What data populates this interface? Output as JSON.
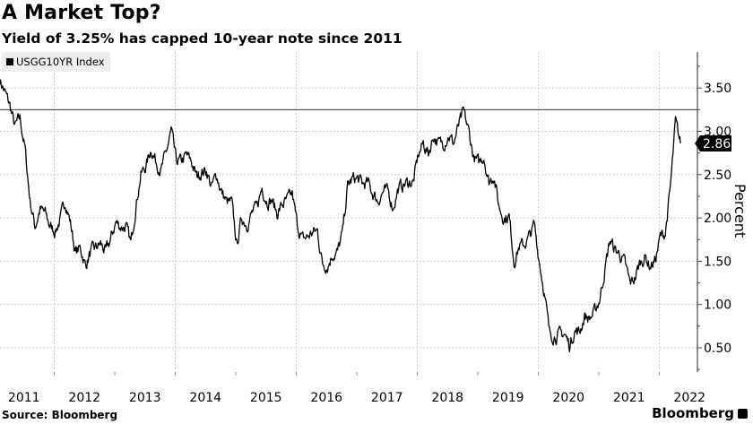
{
  "header": {
    "title": "A Market Top?",
    "subtitle": "Yield of 3.25% has capped 10-year note since 2011"
  },
  "footer": {
    "source": "Source: Bloomberg",
    "brand": "Bloomberg"
  },
  "chart_data": {
    "type": "line",
    "title": "A Market Top?",
    "subtitle": "Yield of 3.25% has capped 10-year note since 2011",
    "xlabel": "",
    "ylabel": "Percent",
    "legend": {
      "entries": [
        "USGG10YR Index"
      ],
      "placement": "top-left"
    },
    "x_tick_labels": [
      "2011",
      "2012",
      "2013",
      "2014",
      "2015",
      "2016",
      "2017",
      "2018",
      "2019",
      "2020",
      "2021",
      "2022"
    ],
    "y_tick_labels": [
      "0.50",
      "1.00",
      "1.50",
      "2.00",
      "2.50",
      "3.00",
      "3.50"
    ],
    "y_ticks": [
      0.5,
      1.0,
      1.5,
      2.0,
      2.5,
      3.0,
      3.5
    ],
    "ylim": [
      0.25,
      3.9
    ],
    "xlim": [
      2011.0,
      2022.5
    ],
    "grid": true,
    "reference_line": {
      "value": 3.25
    },
    "last_value_label": "2.86",
    "last_value": 2.86,
    "line_color": "#000000",
    "series": [
      {
        "name": "USGG10YR Index",
        "x_start": 2011.1,
        "step_years": 0.08333,
        "values": [
          3.6,
          3.45,
          3.3,
          3.05,
          3.15,
          2.8,
          2.2,
          1.9,
          2.1,
          2.05,
          1.9,
          1.85,
          1.98,
          2.2,
          1.95,
          1.6,
          1.65,
          1.45,
          1.6,
          1.65,
          1.7,
          1.6,
          1.75,
          1.95,
          1.9,
          1.9,
          1.7,
          2.15,
          2.5,
          2.6,
          2.8,
          2.65,
          2.55,
          2.75,
          3.0,
          2.65,
          2.65,
          2.72,
          2.65,
          2.48,
          2.53,
          2.55,
          2.35,
          2.5,
          2.3,
          2.18,
          2.17,
          1.68,
          2.0,
          1.93,
          2.05,
          2.12,
          2.35,
          2.2,
          2.2,
          2.05,
          2.15,
          2.2,
          2.27,
          1.92,
          1.75,
          1.78,
          1.83,
          1.85,
          1.47,
          1.45,
          1.58,
          1.6,
          1.83,
          2.37,
          2.45,
          2.45,
          2.39,
          2.4,
          2.28,
          2.2,
          2.3,
          2.3,
          2.12,
          2.33,
          2.38,
          2.41,
          2.41,
          2.72,
          2.86,
          2.74,
          2.95,
          2.86,
          2.86,
          2.96,
          2.86,
          3.06,
          3.22,
          3.0,
          2.69,
          2.63,
          2.72,
          2.41,
          2.5,
          2.13,
          2.0,
          2.02,
          1.5,
          1.67,
          1.69,
          1.78,
          1.92,
          1.51,
          1.15,
          0.67,
          0.64,
          0.65,
          0.66,
          0.53,
          0.7,
          0.68,
          0.87,
          0.84,
          0.91,
          1.07,
          1.4,
          1.74,
          1.63,
          1.58,
          1.47,
          1.24,
          1.31,
          1.49,
          1.55,
          1.44,
          1.51,
          1.78,
          1.83,
          2.34,
          3.1,
          2.86
        ]
      }
    ]
  }
}
